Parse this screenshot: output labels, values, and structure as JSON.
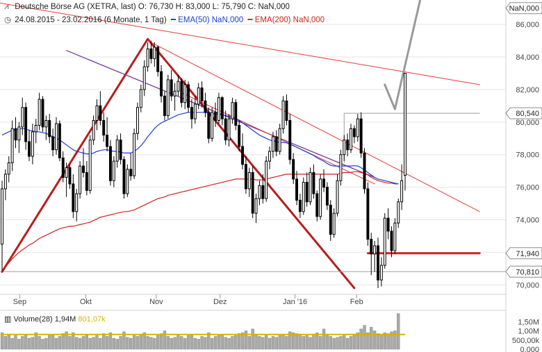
{
  "header": {
    "line1_icon": "chart-icon",
    "line1": "Deutsche Börse AG (XETRA, last)  O: 76,730  H: 83,000  L: 75,790  C: NaN,000",
    "line2_icon": "clock-icon",
    "line2_range": "24.08.2015 - 23.02.2016 (6 Monate, 1 Tag)",
    "ema50_label": "EMA(50)  NaN,000",
    "ema200_label": "EMA(200)  NaN,000"
  },
  "volume_label": {
    "text": "Volume(28)  1,94M",
    "value2": "801,07k"
  },
  "colors": {
    "candle": "#000000",
    "ema50": "#1a3fd6",
    "ema200": "#d42020",
    "trend_thick": "#b71c1c",
    "trend_thin": "#e53935",
    "purple_line": "#7a3a9a",
    "projection": "#999999",
    "volume_bar": "#a9a9a9",
    "volume_avg": "#d7b400"
  },
  "chart_data": {
    "type": "candlestick",
    "y_axis": {
      "min": 69.5,
      "max": 87.5,
      "ticks": [
        70,
        72,
        74,
        76,
        78,
        80,
        82,
        84,
        86
      ],
      "tick_labels": [
        "70,000",
        "72,000",
        "74,000",
        "76,000",
        "78,000",
        "80,000",
        "82,000",
        "84,000",
        "86,000"
      ],
      "price_tags": [
        {
          "value": 87.0,
          "label": "NaN,000"
        },
        {
          "value": 80.54,
          "label": "80,540"
        },
        {
          "value": 71.94,
          "label": "71,940"
        },
        {
          "value": 70.81,
          "label": "70,810"
        }
      ]
    },
    "x_axis": {
      "start": "2015-08-24",
      "end": "2016-02-23",
      "months": [
        {
          "label": "Sep",
          "date": "2015-09-01"
        },
        {
          "label": "Okt",
          "date": "2015-10-01"
        },
        {
          "label": "Nov",
          "date": "2015-11-02"
        },
        {
          "label": "Dez",
          "date": "2015-12-01"
        },
        {
          "label": "Jan '16",
          "date": "2016-01-04"
        },
        {
          "label": "Feb",
          "date": "2016-02-01"
        }
      ]
    },
    "ohlc": [
      [
        72.5,
        76.4,
        70.8,
        75.9
      ],
      [
        75.9,
        77.1,
        75.2,
        76.8
      ],
      [
        76.8,
        77.9,
        76.3,
        77.5
      ],
      [
        77.5,
        80.1,
        77.0,
        79.6
      ],
      [
        79.6,
        80.3,
        78.4,
        78.9
      ],
      [
        78.9,
        80.0,
        78.1,
        79.7
      ],
      [
        79.7,
        81.5,
        79.2,
        80.9
      ],
      [
        80.9,
        81.2,
        78.3,
        78.8
      ],
      [
        78.8,
        79.5,
        77.6,
        77.9
      ],
      [
        77.9,
        79.9,
        77.4,
        79.4
      ],
      [
        79.4,
        80.2,
        78.7,
        79.8
      ],
      [
        79.8,
        81.8,
        79.5,
        81.4
      ],
      [
        81.4,
        81.6,
        79.4,
        79.7
      ],
      [
        79.7,
        80.4,
        78.9,
        80.1
      ],
      [
        80.1,
        80.5,
        78.7,
        79.1
      ],
      [
        79.1,
        79.6,
        77.9,
        78.3
      ],
      [
        78.3,
        80.3,
        78.0,
        79.9
      ],
      [
        79.9,
        80.1,
        77.6,
        77.8
      ],
      [
        77.8,
        78.2,
        76.3,
        76.6
      ],
      [
        76.6,
        77.5,
        75.4,
        77.2
      ],
      [
        77.2,
        77.4,
        75.9,
        76.2
      ],
      [
        76.2,
        76.8,
        74.1,
        74.5
      ],
      [
        74.5,
        75.9,
        73.9,
        75.6
      ],
      [
        75.6,
        77.6,
        75.3,
        77.3
      ],
      [
        77.3,
        78.4,
        76.6,
        76.9
      ],
      [
        76.9,
        77.6,
        75.5,
        75.8
      ],
      [
        75.8,
        79.2,
        75.6,
        78.9
      ],
      [
        78.9,
        80.4,
        78.6,
        80.1
      ],
      [
        80.1,
        81.4,
        79.5,
        81.0
      ],
      [
        81.0,
        81.9,
        79.8,
        80.1
      ],
      [
        80.1,
        80.6,
        78.8,
        79.2
      ],
      [
        79.2,
        80.3,
        78.2,
        78.5
      ],
      [
        78.5,
        78.9,
        76.1,
        76.4
      ],
      [
        76.4,
        77.9,
        76.0,
        77.6
      ],
      [
        77.6,
        79.2,
        77.2,
        78.9
      ],
      [
        78.9,
        79.3,
        77.4,
        77.7
      ],
      [
        77.7,
        77.9,
        75.3,
        75.6
      ],
      [
        75.6,
        77.4,
        75.4,
        77.1
      ],
      [
        77.1,
        78.1,
        76.4,
        76.7
      ],
      [
        76.7,
        79.6,
        76.5,
        79.3
      ],
      [
        79.3,
        81.2,
        78.9,
        80.9
      ],
      [
        80.9,
        82.3,
        80.6,
        82.0
      ],
      [
        82.0,
        83.8,
        81.6,
        83.4
      ],
      [
        83.4,
        84.9,
        83.1,
        84.5
      ],
      [
        84.5,
        85.0,
        83.6,
        83.9
      ],
      [
        83.9,
        84.9,
        83.4,
        84.6
      ],
      [
        84.6,
        84.7,
        82.8,
        83.1
      ],
      [
        83.1,
        83.5,
        81.2,
        81.6
      ],
      [
        81.6,
        81.9,
        80.1,
        80.4
      ],
      [
        80.4,
        82.9,
        80.2,
        82.6
      ],
      [
        82.6,
        83.2,
        81.3,
        81.6
      ],
      [
        81.6,
        82.4,
        80.7,
        81.9
      ],
      [
        81.9,
        82.9,
        81.6,
        82.5
      ],
      [
        82.5,
        82.7,
        80.9,
        81.2
      ],
      [
        81.2,
        82.6,
        80.8,
        82.3
      ],
      [
        82.3,
        82.5,
        80.6,
        80.9
      ],
      [
        80.9,
        81.4,
        79.6,
        80.2
      ],
      [
        80.2,
        81.6,
        79.9,
        81.1
      ],
      [
        81.1,
        82.4,
        80.8,
        82.1
      ],
      [
        82.1,
        82.5,
        80.9,
        81.3
      ],
      [
        81.3,
        81.8,
        80.3,
        80.6
      ],
      [
        80.6,
        80.9,
        78.7,
        79.0
      ],
      [
        79.0,
        80.9,
        78.8,
        80.6
      ],
      [
        80.6,
        81.2,
        79.7,
        80.1
      ],
      [
        80.1,
        81.8,
        79.9,
        81.5
      ],
      [
        81.5,
        81.6,
        79.8,
        80.2
      ],
      [
        80.2,
        80.7,
        78.6,
        78.9
      ],
      [
        78.9,
        80.5,
        78.5,
        80.2
      ],
      [
        80.2,
        81.5,
        79.9,
        81.2
      ],
      [
        81.2,
        81.4,
        79.5,
        79.8
      ],
      [
        79.8,
        80.1,
        78.2,
        78.5
      ],
      [
        78.5,
        79.3,
        77.1,
        77.4
      ],
      [
        77.4,
        77.9,
        75.6,
        75.9
      ],
      [
        75.9,
        77.2,
        75.4,
        76.9
      ],
      [
        76.9,
        77.3,
        74.1,
        74.4
      ],
      [
        74.4,
        75.6,
        73.8,
        75.3
      ],
      [
        75.3,
        76.4,
        74.9,
        76.1
      ],
      [
        76.1,
        76.8,
        75.0,
        75.3
      ],
      [
        75.3,
        77.9,
        75.1,
        77.6
      ],
      [
        77.6,
        78.5,
        77.1,
        78.2
      ],
      [
        78.2,
        79.4,
        77.8,
        79.1
      ],
      [
        79.1,
        79.5,
        77.9,
        78.2
      ],
      [
        78.2,
        79.9,
        78.0,
        79.6
      ],
      [
        79.6,
        81.6,
        79.3,
        81.3
      ],
      [
        81.3,
        81.7,
        79.8,
        80.1
      ],
      [
        80.1,
        80.5,
        77.4,
        77.7
      ],
      [
        77.7,
        78.1,
        76.2,
        76.5
      ],
      [
        76.5,
        77.0,
        74.9,
        75.2
      ],
      [
        75.2,
        75.6,
        74.1,
        74.5
      ],
      [
        74.5,
        76.6,
        74.3,
        76.3
      ],
      [
        76.3,
        76.9,
        74.8,
        75.1
      ],
      [
        75.1,
        77.2,
        74.9,
        76.9
      ],
      [
        76.9,
        77.4,
        75.3,
        75.6
      ],
      [
        75.6,
        75.8,
        73.9,
        74.2
      ],
      [
        74.2,
        76.8,
        74.0,
        76.5
      ],
      [
        76.5,
        77.1,
        75.7,
        76.0
      ],
      [
        76.0,
        76.3,
        74.6,
        74.9
      ],
      [
        74.9,
        75.2,
        72.7,
        73.1
      ],
      [
        73.1,
        74.7,
        72.9,
        74.4
      ],
      [
        74.4,
        76.8,
        74.2,
        76.4
      ],
      [
        76.4,
        78.3,
        76.1,
        78.0
      ],
      [
        78.0,
        79.2,
        77.6,
        78.9
      ],
      [
        78.9,
        79.3,
        77.9,
        78.3
      ],
      [
        78.3,
        79.9,
        78.1,
        79.6
      ],
      [
        79.6,
        79.8,
        78.7,
        79.1
      ],
      [
        79.1,
        80.5,
        78.8,
        80.2
      ],
      [
        80.2,
        80.6,
        77.8,
        78.1
      ],
      [
        78.1,
        78.4,
        75.6,
        75.9
      ],
      [
        75.9,
        76.3,
        72.4,
        72.8
      ],
      [
        72.8,
        73.2,
        70.6,
        71.9
      ],
      [
        71.9,
        72.7,
        70.8,
        72.4
      ],
      [
        72.4,
        72.9,
        69.8,
        70.3
      ],
      [
        70.3,
        71.7,
        69.9,
        71.2
      ],
      [
        71.2,
        74.4,
        71.0,
        74.1
      ],
      [
        74.1,
        74.7,
        72.8,
        73.3
      ],
      [
        73.3,
        73.6,
        71.7,
        72.1
      ],
      [
        72.1,
        74.1,
        71.9,
        73.8
      ],
      [
        73.8,
        75.3,
        73.5,
        75.1
      ],
      [
        75.1,
        77.4,
        74.6,
        76.4
      ],
      [
        76.73,
        83.0,
        75.79,
        83.0
      ]
    ],
    "volume": {
      "axis_labels": [
        "1,50M",
        "1,00M",
        "500,00k",
        "0,000"
      ],
      "axis_values": [
        1.5,
        1.0,
        0.5,
        0.0
      ],
      "max": 2.0,
      "values": [
        0.9,
        0.7,
        0.8,
        0.6,
        0.75,
        0.55,
        0.7,
        0.8,
        0.6,
        0.65,
        0.9,
        0.7,
        0.55,
        0.6,
        0.75,
        0.8,
        0.6,
        0.7,
        0.85,
        0.95,
        0.7,
        0.9,
        0.65,
        0.6,
        0.7,
        0.8,
        0.6,
        0.65,
        0.75,
        0.6,
        0.85,
        0.7,
        0.9,
        0.6,
        0.55,
        0.7,
        0.95,
        0.65,
        0.6,
        0.75,
        0.7,
        0.8,
        0.9,
        0.7,
        0.65,
        0.6,
        0.75,
        0.85,
        1.0,
        0.7,
        0.6,
        0.65,
        0.8,
        0.7,
        0.6,
        0.75,
        0.8,
        0.6,
        0.55,
        0.7,
        0.65,
        0.9,
        0.6,
        0.7,
        0.75,
        0.8,
        0.65,
        0.6,
        0.7,
        0.75,
        0.85,
        0.9,
        1.0,
        0.7,
        1.1,
        0.8,
        0.7,
        0.65,
        0.75,
        0.6,
        0.7,
        0.65,
        0.75,
        0.8,
        0.7,
        0.95,
        0.9,
        0.85,
        0.8,
        0.7,
        0.75,
        0.65,
        0.8,
        0.9,
        0.7,
        1.1,
        0.8,
        0.7,
        0.6,
        0.65,
        0.7,
        0.75,
        0.6,
        0.7,
        0.8,
        0.9,
        1.1,
        1.3,
        0.9,
        1.2,
        1.0,
        0.85,
        0.8,
        0.9,
        0.85,
        0.95,
        1.0,
        1.94
      ],
      "avg": 0.80107
    },
    "ema50": [
      79.2,
      79.3,
      79.4,
      79.5,
      79.55,
      79.58,
      79.6,
      79.57,
      79.5,
      79.45,
      79.4,
      79.4,
      79.35,
      79.3,
      79.2,
      79.1,
      79.0,
      78.9,
      78.75,
      78.6,
      78.45,
      78.3,
      78.2,
      78.15,
      78.1,
      78.05,
      78.05,
      78.1,
      78.2,
      78.25,
      78.3,
      78.3,
      78.25,
      78.2,
      78.2,
      78.15,
      78.1,
      78.1,
      78.1,
      78.2,
      78.35,
      78.55,
      78.8,
      79.1,
      79.35,
      79.6,
      79.8,
      79.95,
      80.05,
      80.15,
      80.25,
      80.35,
      80.45,
      80.5,
      80.55,
      80.6,
      80.6,
      80.6,
      80.6,
      80.6,
      80.58,
      80.55,
      80.52,
      80.5,
      80.48,
      80.45,
      80.4,
      80.35,
      80.3,
      80.2,
      80.1,
      79.95,
      79.8,
      79.65,
      79.5,
      79.35,
      79.2,
      79.1,
      79.0,
      78.9,
      78.85,
      78.8,
      78.75,
      78.75,
      78.72,
      78.65,
      78.55,
      78.45,
      78.35,
      78.25,
      78.15,
      78.05,
      77.95,
      77.8,
      77.7,
      77.6,
      77.45,
      77.35,
      77.3,
      77.3,
      77.3,
      77.3,
      77.3,
      77.3,
      77.32,
      77.3,
      77.2,
      77.05,
      76.9,
      76.75,
      76.6,
      76.5,
      76.45,
      76.4,
      76.35,
      76.3,
      76.25,
      76.2
    ],
    "ema200": [
      70.8,
      71.1,
      71.35,
      71.6,
      71.8,
      72.0,
      72.15,
      72.3,
      72.45,
      72.55,
      72.7,
      72.85,
      72.95,
      73.05,
      73.15,
      73.25,
      73.35,
      73.45,
      73.5,
      73.55,
      73.6,
      73.6,
      73.65,
      73.7,
      73.75,
      73.8,
      73.85,
      73.95,
      74.05,
      74.15,
      74.2,
      74.25,
      74.3,
      74.35,
      74.4,
      74.45,
      74.5,
      74.5,
      74.55,
      74.6,
      74.7,
      74.8,
      74.9,
      75.0,
      75.1,
      75.2,
      75.3,
      75.35,
      75.4,
      75.5,
      75.55,
      75.6,
      75.65,
      75.7,
      75.75,
      75.8,
      75.85,
      75.9,
      75.95,
      76.0,
      76.05,
      76.1,
      76.15,
      76.2,
      76.25,
      76.3,
      76.35,
      76.4,
      76.45,
      76.5,
      76.5,
      76.5,
      76.5,
      76.5,
      76.5,
      76.45,
      76.45,
      76.45,
      76.5,
      76.55,
      76.6,
      76.65,
      76.7,
      76.75,
      76.8,
      76.8,
      76.8,
      76.8,
      76.8,
      76.8,
      76.8,
      76.8,
      76.8,
      76.8,
      76.8,
      76.8,
      76.8,
      76.8,
      76.8,
      76.8,
      76.85,
      76.9,
      76.9,
      76.9,
      76.95,
      76.95,
      76.9,
      76.85,
      76.75,
      76.6,
      76.5,
      76.4,
      76.35,
      76.3,
      76.25,
      76.25,
      76.2,
      76.2
    ],
    "drawings": [
      {
        "name": "trend-up-thick",
        "from": {
          "i": 0,
          "v": 70.8
        },
        "to": {
          "i": 43,
          "v": 85.1
        }
      },
      {
        "name": "trend-down-thick",
        "from": {
          "i": 43,
          "v": 85.1
        },
        "to": {
          "i": 104,
          "v": 69.8
        }
      },
      {
        "name": "horizontal-71-94",
        "from": {
          "i": 108,
          "v": 71.94
        },
        "to": {
          "i": 141,
          "v": 71.94
        }
      },
      {
        "name": "channel-upper-thin",
        "from": {
          "i": 43,
          "v": 85.0
        },
        "to": {
          "i": 141,
          "v": 74.5
        }
      },
      {
        "name": "long-thin-top",
        "from": {
          "i": -20,
          "v": 88.0
        },
        "to": {
          "i": 141,
          "v": 82.3
        }
      },
      {
        "name": "purple-diagonal",
        "from": {
          "i": 19,
          "v": 84.4
        },
        "to": {
          "i": 110,
          "v": 76.6
        }
      },
      {
        "name": "red-diagonal-inner",
        "from": {
          "i": 53,
          "v": 81.8
        },
        "to": {
          "i": 110,
          "v": 76.2
        }
      },
      {
        "name": "horizontal-80-54",
        "from": {
          "i": 101,
          "v": 80.54
        },
        "to": {
          "i": 141,
          "v": 80.54
        }
      },
      {
        "name": "vertical-80-54",
        "from": {
          "i": 101,
          "v": 80.54
        },
        "to": {
          "i": 101,
          "v": 77.5
        }
      },
      {
        "name": "projection-down",
        "from": {
          "i": 113,
          "v": 82.3
        },
        "to": {
          "i": 116,
          "v": 80.8
        }
      },
      {
        "name": "projection-up",
        "from": {
          "i": 116,
          "v": 80.8
        },
        "to": {
          "i": 124,
          "v": 88.0
        }
      }
    ]
  }
}
